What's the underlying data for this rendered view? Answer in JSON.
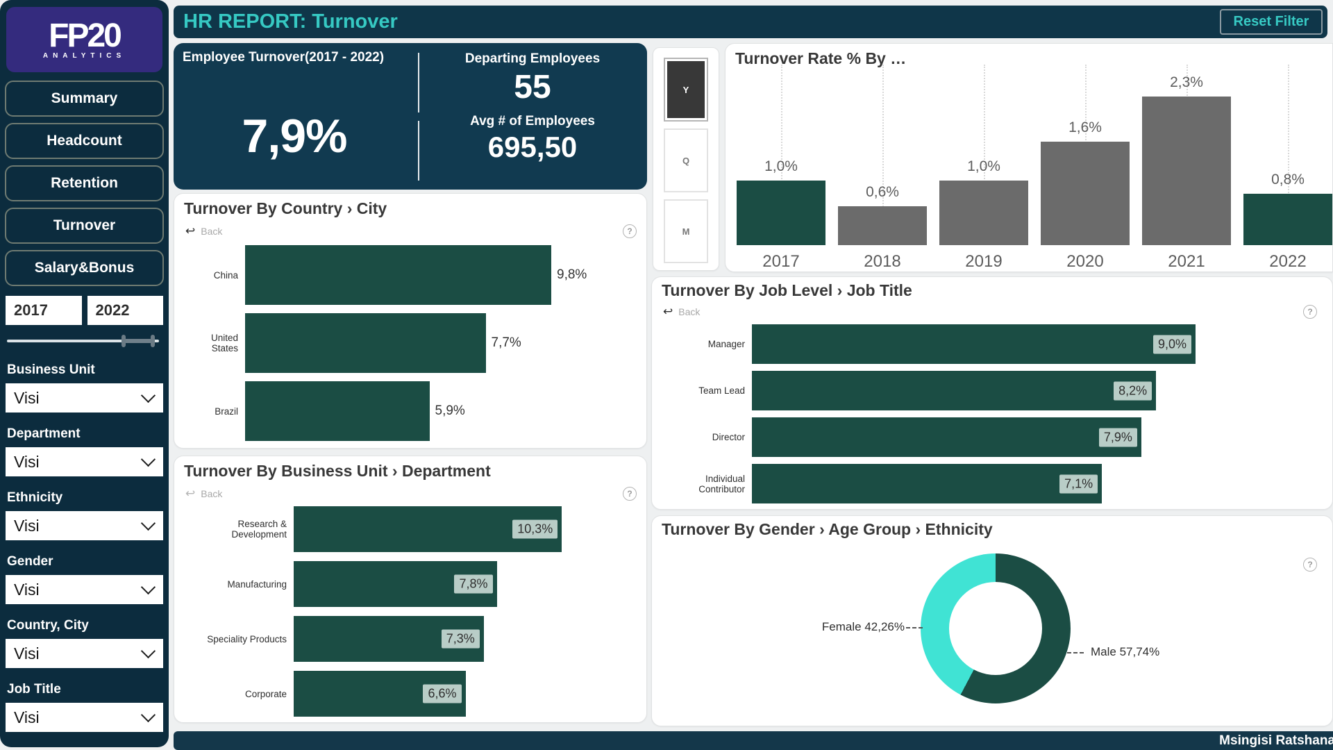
{
  "header": {
    "title": "HR REPORT: Turnover",
    "reset_label": "Reset Filter"
  },
  "sidebar": {
    "logo_line1": "FP20",
    "logo_line2": "ANALYTICS",
    "nav": [
      {
        "label": "Summary"
      },
      {
        "label": "Headcount"
      },
      {
        "label": "Retention"
      },
      {
        "label": "Turnover"
      },
      {
        "label": "Salary&Bonus"
      }
    ],
    "year_start": "2017",
    "year_end": "2022",
    "filters": [
      {
        "label": "Business Unit",
        "value": "Visi"
      },
      {
        "label": "Department",
        "value": "Visi"
      },
      {
        "label": "Ethnicity",
        "value": "Visi"
      },
      {
        "label": "Gender",
        "value": "Visi"
      },
      {
        "label": "Country, City",
        "value": "Visi"
      },
      {
        "label": "Job Title",
        "value": "Visi"
      }
    ]
  },
  "kpi": {
    "turnover_label": "Employee Turnover(2017 - 2022)",
    "turnover_value": "7,9%",
    "departing_label": "Departing Employees",
    "departing_value": "55",
    "avg_label": "Avg # of Employees",
    "avg_value": "695,50"
  },
  "time_buttons": {
    "options": [
      {
        "label": "Y",
        "selected": true
      },
      {
        "label": "Q",
        "selected": false
      },
      {
        "label": "M",
        "selected": false
      }
    ]
  },
  "icons": {
    "back": "↩",
    "help": "?"
  },
  "footer": {
    "author": "Msingisi Ratshana"
  },
  "colors": {
    "sidebar_navy": "#0c2c3e",
    "panel_navy": "#113a50",
    "header_navy": "#0f3649",
    "footer_navy": "#14374a",
    "logo_purple": "#342b7e",
    "accent_teal": "#36c9c3",
    "teal_bar": "#1b4d44",
    "gray_bar": "#6b6b6b",
    "donut_cyan": "#40e3d4",
    "label_chip": "#c7d8d2"
  },
  "chart_data": [
    {
      "type": "bar",
      "title": "Turnover Rate % By …",
      "categories": [
        "2017",
        "2018",
        "2019",
        "2020",
        "2021",
        "2022"
      ],
      "values": [
        1.0,
        0.6,
        1.0,
        1.6,
        2.3,
        0.8
      ],
      "labels": [
        "1,0%",
        "0,6%",
        "1,0%",
        "1,6%",
        "2,3%",
        "0,8%"
      ],
      "bar_colors": [
        "#1b4d44",
        "#6b6b6b",
        "#6b6b6b",
        "#6b6b6b",
        "#6b6b6b",
        "#1b4d44"
      ],
      "highlighted": [
        "2017",
        "2022"
      ],
      "ylim": [
        0,
        2.5
      ],
      "grid": "dotted-vertical",
      "legend": "none"
    },
    {
      "type": "bar",
      "orientation": "horizontal",
      "title": "Turnover By Country › City",
      "back_label": "Back",
      "categories": [
        "China",
        "United States",
        "Brazil"
      ],
      "values": [
        9.8,
        7.7,
        5.9
      ],
      "labels": [
        "9,8%",
        "7,7%",
        "5,9%"
      ],
      "label_position": "outside"
    },
    {
      "type": "bar",
      "orientation": "horizontal",
      "title": "Turnover By Business Unit › Department",
      "back_label": "Back",
      "categories": [
        "Research & Development",
        "Manufacturing",
        "Speciality Products",
        "Corporate"
      ],
      "values": [
        10.3,
        7.8,
        7.3,
        6.6
      ],
      "labels": [
        "10,3%",
        "7,8%",
        "7,3%",
        "6,6%"
      ],
      "label_position": "inside"
    },
    {
      "type": "bar",
      "orientation": "horizontal",
      "title": "Turnover By Job Level › Job Title",
      "back_label": "Back",
      "categories": [
        "Manager",
        "Team Lead",
        "Director",
        "Individual Contributor"
      ],
      "values": [
        9.0,
        8.2,
        7.9,
        7.1
      ],
      "labels": [
        "9,0%",
        "8,2%",
        "7,9%",
        "7,1%"
      ],
      "label_position": "inside"
    },
    {
      "type": "pie",
      "donut": true,
      "title": "Turnover By Gender › Age Group › Ethnicity",
      "slices": [
        {
          "name": "Male",
          "value": 57.74,
          "label": "Male 57,74%",
          "color": "#1b4d44"
        },
        {
          "name": "Female",
          "value": 42.26,
          "label": "Female 42,26%",
          "color": "#40e3d4"
        }
      ]
    }
  ]
}
